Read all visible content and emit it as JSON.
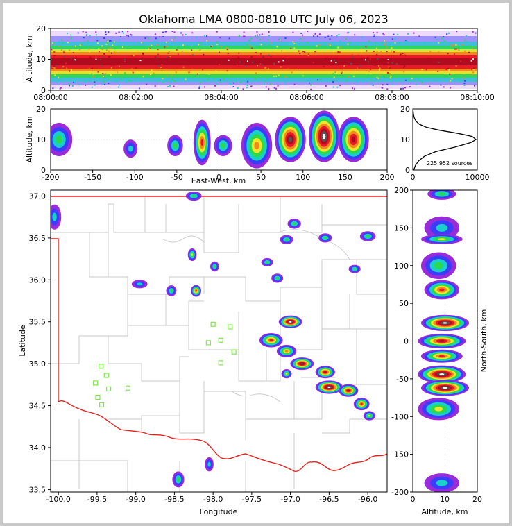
{
  "title": "Oklahoma LMA 0800-0810 UTC July 06, 2023",
  "panels": {
    "time_height": {
      "ylabel": "Altitude, km",
      "yticks": [
        "0",
        "10",
        "20"
      ],
      "xticks": [
        "08:00:00",
        "08:02:00",
        "08:04:00",
        "08:06:00",
        "08:08:00",
        "08:10:00"
      ]
    },
    "ew_height": {
      "xlabel": "East-West, km",
      "ylabel": "Altitude, km",
      "xticks": [
        "-200",
        "-150",
        "-100",
        "-50",
        "0",
        "50",
        "100",
        "150",
        "200"
      ],
      "yticks": [
        "0",
        "10",
        "20"
      ]
    },
    "histogram": {
      "yticks": [
        "0",
        "10",
        "20"
      ],
      "xticks": [
        "0",
        "10000"
      ],
      "annotation": "225,952 sources"
    },
    "plan": {
      "xlabel": "Longitude",
      "ylabel": "Latitude",
      "xticks": [
        "-100.0",
        "-99.5",
        "-99.0",
        "-98.5",
        "-98.0",
        "-97.5",
        "-97.0",
        "-96.5",
        "-96.0"
      ],
      "yticks": [
        "37.0",
        "36.5",
        "36.0",
        "35.5",
        "35.0",
        "34.5",
        "34.0",
        "33.5"
      ]
    },
    "ns_height": {
      "xlabel": "Altitude, km",
      "ylabel": "North-South, km",
      "xticks": [
        "0",
        "10",
        "20"
      ],
      "yticks": [
        "200",
        "150",
        "100",
        "50",
        "0",
        "-50",
        "-100",
        "-150",
        "-200"
      ]
    }
  },
  "chart_data": [
    {
      "type": "heatmap",
      "panel": "time_height",
      "xlim": [
        "08:00:00",
        "08:10:00"
      ],
      "ylim": [
        0,
        20
      ],
      "ylabel": "Altitude, km",
      "description_data": {
        "core_altitude_km": [
          6,
          14
        ],
        "peak_altitude_km": 10
      }
    },
    {
      "type": "heatmap",
      "panel": "ew_height",
      "xlim": [
        -200,
        200
      ],
      "ylim": [
        0,
        20
      ],
      "xlabel": "East-West, km",
      "ylabel": "Altitude, km",
      "cells": [
        {
          "x": -190,
          "y": 10,
          "w": 25,
          "h": 10,
          "level": 0.35
        },
        {
          "x": -105,
          "y": 7,
          "w": 10,
          "h": 5,
          "level": 0.25
        },
        {
          "x": -52,
          "y": 8,
          "w": 12,
          "h": 6,
          "level": 0.4
        },
        {
          "x": -20,
          "y": 9,
          "w": 14,
          "h": 14,
          "level": 0.7
        },
        {
          "x": 5,
          "y": 8,
          "w": 15,
          "h": 6,
          "level": 0.35
        },
        {
          "x": 45,
          "y": 8,
          "w": 30,
          "h": 14,
          "level": 0.6
        },
        {
          "x": 85,
          "y": 10,
          "w": 30,
          "h": 14,
          "level": 0.9
        },
        {
          "x": 125,
          "y": 11,
          "w": 30,
          "h": 16,
          "level": 1.0
        },
        {
          "x": 160,
          "y": 10,
          "w": 30,
          "h": 14,
          "level": 0.75
        }
      ]
    },
    {
      "type": "line",
      "panel": "histogram",
      "xlim": [
        0,
        10000
      ],
      "ylim": [
        0,
        20
      ],
      "x": [
        150,
        400,
        900,
        1800,
        3500,
        6500,
        9000,
        9800,
        9200,
        7000,
        4200,
        2100,
        1000,
        500,
        250,
        120,
        60,
        30
      ],
      "y": [
        0,
        1.5,
        3,
        4.5,
        6,
        7.5,
        9,
        10,
        11,
        12,
        13,
        14,
        15,
        16,
        17,
        18,
        19,
        20
      ]
    },
    {
      "type": "scatter",
      "panel": "plan",
      "xlim": [
        -100.1,
        -95.75
      ],
      "ylim": [
        33.47,
        37.07
      ],
      "xlabel": "Longitude",
      "ylabel": "Latitude",
      "stations": [
        {
          "lon": -99.45,
          "lat": 34.97
        },
        {
          "lon": -99.52,
          "lat": 34.77
        },
        {
          "lon": -99.38,
          "lat": 34.86
        },
        {
          "lon": -99.35,
          "lat": 34.7
        },
        {
          "lon": -99.49,
          "lat": 34.6
        },
        {
          "lon": -99.44,
          "lat": 34.51
        },
        {
          "lon": -99.1,
          "lat": 34.71
        },
        {
          "lon": -98.0,
          "lat": 35.47
        },
        {
          "lon": -97.78,
          "lat": 35.44
        },
        {
          "lon": -98.06,
          "lat": 35.25
        },
        {
          "lon": -97.9,
          "lat": 35.28
        },
        {
          "lon": -97.73,
          "lat": 35.14
        },
        {
          "lon": -97.9,
          "lat": 35.01
        }
      ],
      "cells": [
        {
          "lon": -100.05,
          "lat": 36.75,
          "w": 0.12,
          "h": 0.25,
          "level": 0.3
        },
        {
          "lon": -98.25,
          "lat": 37.0,
          "w": 0.15,
          "h": 0.06,
          "level": 0.4
        },
        {
          "lon": -96.95,
          "lat": 36.67,
          "w": 0.12,
          "h": 0.07,
          "level": 0.4
        },
        {
          "lon": -96.55,
          "lat": 36.5,
          "w": 0.12,
          "h": 0.06,
          "level": 0.35
        },
        {
          "lon": -96.0,
          "lat": 36.52,
          "w": 0.15,
          "h": 0.07,
          "level": 0.4
        },
        {
          "lon": -97.05,
          "lat": 36.48,
          "w": 0.12,
          "h": 0.06,
          "level": 0.35
        },
        {
          "lon": -98.27,
          "lat": 36.3,
          "w": 0.06,
          "h": 0.1,
          "level": 0.45
        },
        {
          "lon": -97.98,
          "lat": 36.16,
          "w": 0.06,
          "h": 0.07,
          "level": 0.35
        },
        {
          "lon": -97.3,
          "lat": 36.21,
          "w": 0.1,
          "h": 0.05,
          "level": 0.35
        },
        {
          "lon": -97.17,
          "lat": 36.02,
          "w": 0.1,
          "h": 0.06,
          "level": 0.35
        },
        {
          "lon": -96.17,
          "lat": 36.13,
          "w": 0.1,
          "h": 0.05,
          "level": 0.35
        },
        {
          "lon": -98.95,
          "lat": 35.95,
          "w": 0.15,
          "h": 0.05,
          "level": 0.3
        },
        {
          "lon": -98.54,
          "lat": 35.87,
          "w": 0.08,
          "h": 0.08,
          "level": 0.4
        },
        {
          "lon": -98.22,
          "lat": 35.87,
          "w": 0.08,
          "h": 0.09,
          "level": 0.65
        },
        {
          "lon": -97.0,
          "lat": 35.5,
          "w": 0.25,
          "h": 0.1,
          "level": 0.95
        },
        {
          "lon": -97.25,
          "lat": 35.28,
          "w": 0.25,
          "h": 0.12,
          "level": 0.7
        },
        {
          "lon": -97.05,
          "lat": 35.15,
          "w": 0.2,
          "h": 0.1,
          "level": 0.55
        },
        {
          "lon": -96.85,
          "lat": 35.0,
          "w": 0.25,
          "h": 0.1,
          "level": 0.85
        },
        {
          "lon": -97.05,
          "lat": 34.88,
          "w": 0.08,
          "h": 0.06,
          "level": 0.5
        },
        {
          "lon": -96.55,
          "lat": 34.9,
          "w": 0.2,
          "h": 0.1,
          "level": 0.75
        },
        {
          "lon": -96.5,
          "lat": 34.72,
          "w": 0.3,
          "h": 0.11,
          "level": 1.0
        },
        {
          "lon": -96.25,
          "lat": 34.68,
          "w": 0.2,
          "h": 0.1,
          "level": 0.8
        },
        {
          "lon": -96.08,
          "lat": 34.52,
          "w": 0.15,
          "h": 0.1,
          "level": 0.7
        },
        {
          "lon": -95.98,
          "lat": 34.38,
          "w": 0.1,
          "h": 0.06,
          "level": 0.45
        },
        {
          "lon": -98.45,
          "lat": 33.62,
          "w": 0.1,
          "h": 0.14,
          "level": 0.35
        },
        {
          "lon": -98.05,
          "lat": 33.8,
          "w": 0.06,
          "h": 0.12,
          "level": 0.3
        }
      ]
    },
    {
      "type": "heatmap",
      "panel": "ns_height",
      "xlim": [
        0,
        20
      ],
      "ylim": [
        -200,
        200
      ],
      "xlabel": "Altitude, km",
      "ylabel": "North-South, km",
      "cells": [
        {
          "x": 9,
          "y": 195,
          "w": 8,
          "h": 10,
          "level": 0.35
        },
        {
          "x": 9,
          "y": 150,
          "w": 10,
          "h": 25,
          "level": 0.3
        },
        {
          "x": 9,
          "y": 135,
          "w": 12,
          "h": 8,
          "level": 0.45
        },
        {
          "x": 8,
          "y": 100,
          "w": 10,
          "h": 30,
          "level": 0.4
        },
        {
          "x": 9,
          "y": 68,
          "w": 10,
          "h": 20,
          "level": 0.65
        },
        {
          "x": 10,
          "y": 24,
          "w": 14,
          "h": 16,
          "level": 0.95
        },
        {
          "x": 9,
          "y": 0,
          "w": 14,
          "h": 14,
          "level": 0.8
        },
        {
          "x": 9,
          "y": -20,
          "w": 12,
          "h": 12,
          "level": 0.7
        },
        {
          "x": 9,
          "y": -44,
          "w": 14,
          "h": 18,
          "level": 0.95
        },
        {
          "x": 10,
          "y": -62,
          "w": 14,
          "h": 16,
          "level": 1.0
        },
        {
          "x": 8,
          "y": -90,
          "w": 12,
          "h": 24,
          "level": 0.5
        },
        {
          "x": 9,
          "y": -188,
          "w": 10,
          "h": 20,
          "level": 0.3
        }
      ]
    }
  ]
}
